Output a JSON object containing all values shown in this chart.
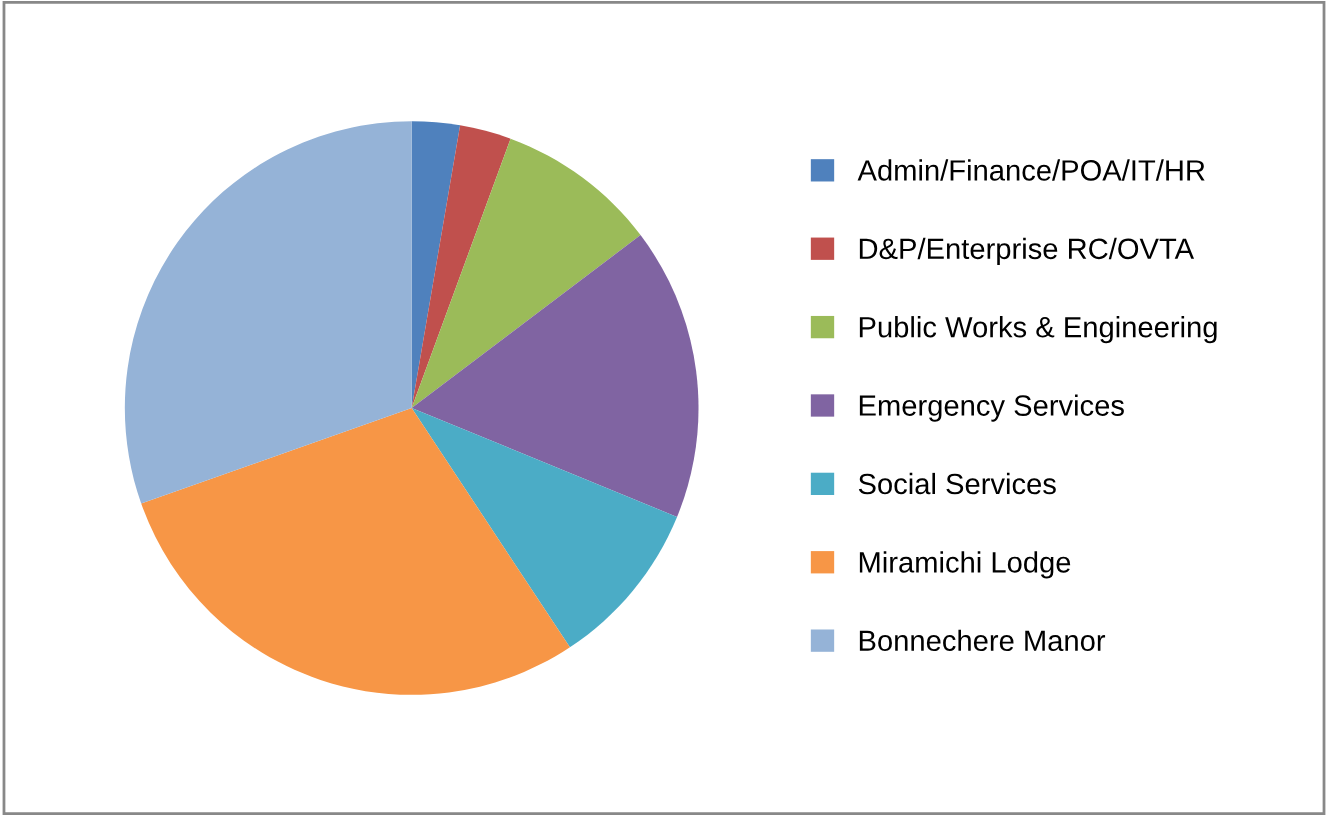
{
  "chart_data": {
    "type": "pie",
    "categories": [
      "Admin/Finance/POA/IT/HR",
      "D&P/Enterprise RC/OVTA",
      "Public Works & Engineering",
      "Emergency Services",
      "Social Services",
      "Miramichi Lodge",
      "Bonnechere Manor"
    ],
    "values": [
      2.7,
      2.9,
      9.1,
      16.5,
      9.5,
      28.9,
      30.4
    ],
    "colors": [
      "#4f81bd",
      "#c0504d",
      "#9bbb59",
      "#8064a2",
      "#4bacc6",
      "#f79646",
      "#95b3d7"
    ],
    "legend": "right"
  }
}
